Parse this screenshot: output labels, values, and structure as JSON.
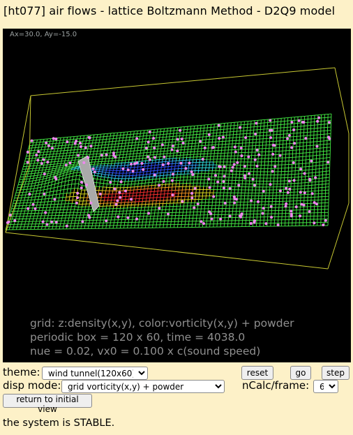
{
  "window": {
    "title": "[ht077] air flows - lattice Boltzmann Method - D2Q9 model"
  },
  "viewport": {
    "angle_readout": "Ax=30.0, Ay=-15.0",
    "info_lines": [
      "grid: z:density(x,y), color:vorticity(x,y) + powder",
      "periodic box = 120 x 60,  time = 4038.0",
      "nue = 0.02,  vx0 = 0.100 x c(sound speed)"
    ],
    "colors": {
      "background": "#000000",
      "frame": "#c8c832",
      "powder": "#ee88ee"
    }
  },
  "controls": {
    "theme_label": "theme:",
    "theme_value": "wind tunnel(120x60)",
    "reset_label": "reset",
    "go_label": "go",
    "step_label": "step",
    "disp_label": "disp mode:",
    "disp_value": "grid vorticity(x,y) + powder",
    "ncalc_label": "nCalc/frame:",
    "ncalc_value": "6",
    "return_label": "return to initial view"
  },
  "status": {
    "text": "the system is STABLE."
  }
}
